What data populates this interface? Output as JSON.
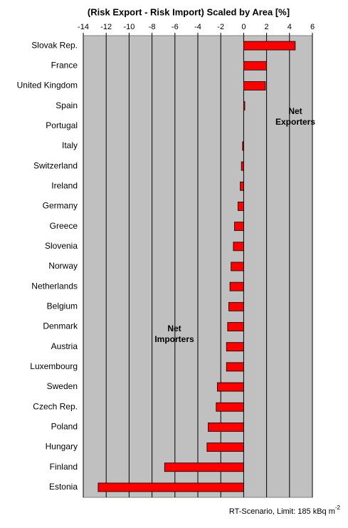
{
  "chart_data": {
    "type": "bar",
    "orientation": "horizontal",
    "title": "(Risk Export - Risk Import) Scaled by Area [%]",
    "categories": [
      "Slovak Rep.",
      "France",
      "United Kingdom",
      "Spain",
      "Portugal",
      "Italy",
      "Switzerland",
      "Ireland",
      "Germany",
      "Greece",
      "Slovenia",
      "Norway",
      "Netherlands",
      "Belgium",
      "Denmark",
      "Austria",
      "Luxembourg",
      "Sweden",
      "Czech Rep.",
      "Poland",
      "Hungary",
      "Finland",
      "Estonia"
    ],
    "values": [
      4.5,
      2.0,
      1.9,
      0.1,
      0,
      -0.1,
      -0.2,
      -0.3,
      -0.5,
      -0.8,
      -0.9,
      -1.1,
      -1.2,
      -1.3,
      -1.4,
      -1.5,
      -1.5,
      -2.3,
      -2.4,
      -3.1,
      -3.2,
      -6.9,
      -12.7
    ],
    "color": "#ff0000",
    "xlim": [
      -14,
      6
    ],
    "xticks": [
      -14,
      -12,
      -10,
      -8,
      -6,
      -4,
      -2,
      0,
      2,
      4,
      6
    ],
    "grid": true,
    "annotations": [
      [
        "Net",
        "Exporters"
      ],
      [
        "Net",
        "Importers"
      ]
    ],
    "note": {
      "text": "RT-Scenario, Limit: 185 kBq m",
      "superscript": "-2"
    }
  }
}
